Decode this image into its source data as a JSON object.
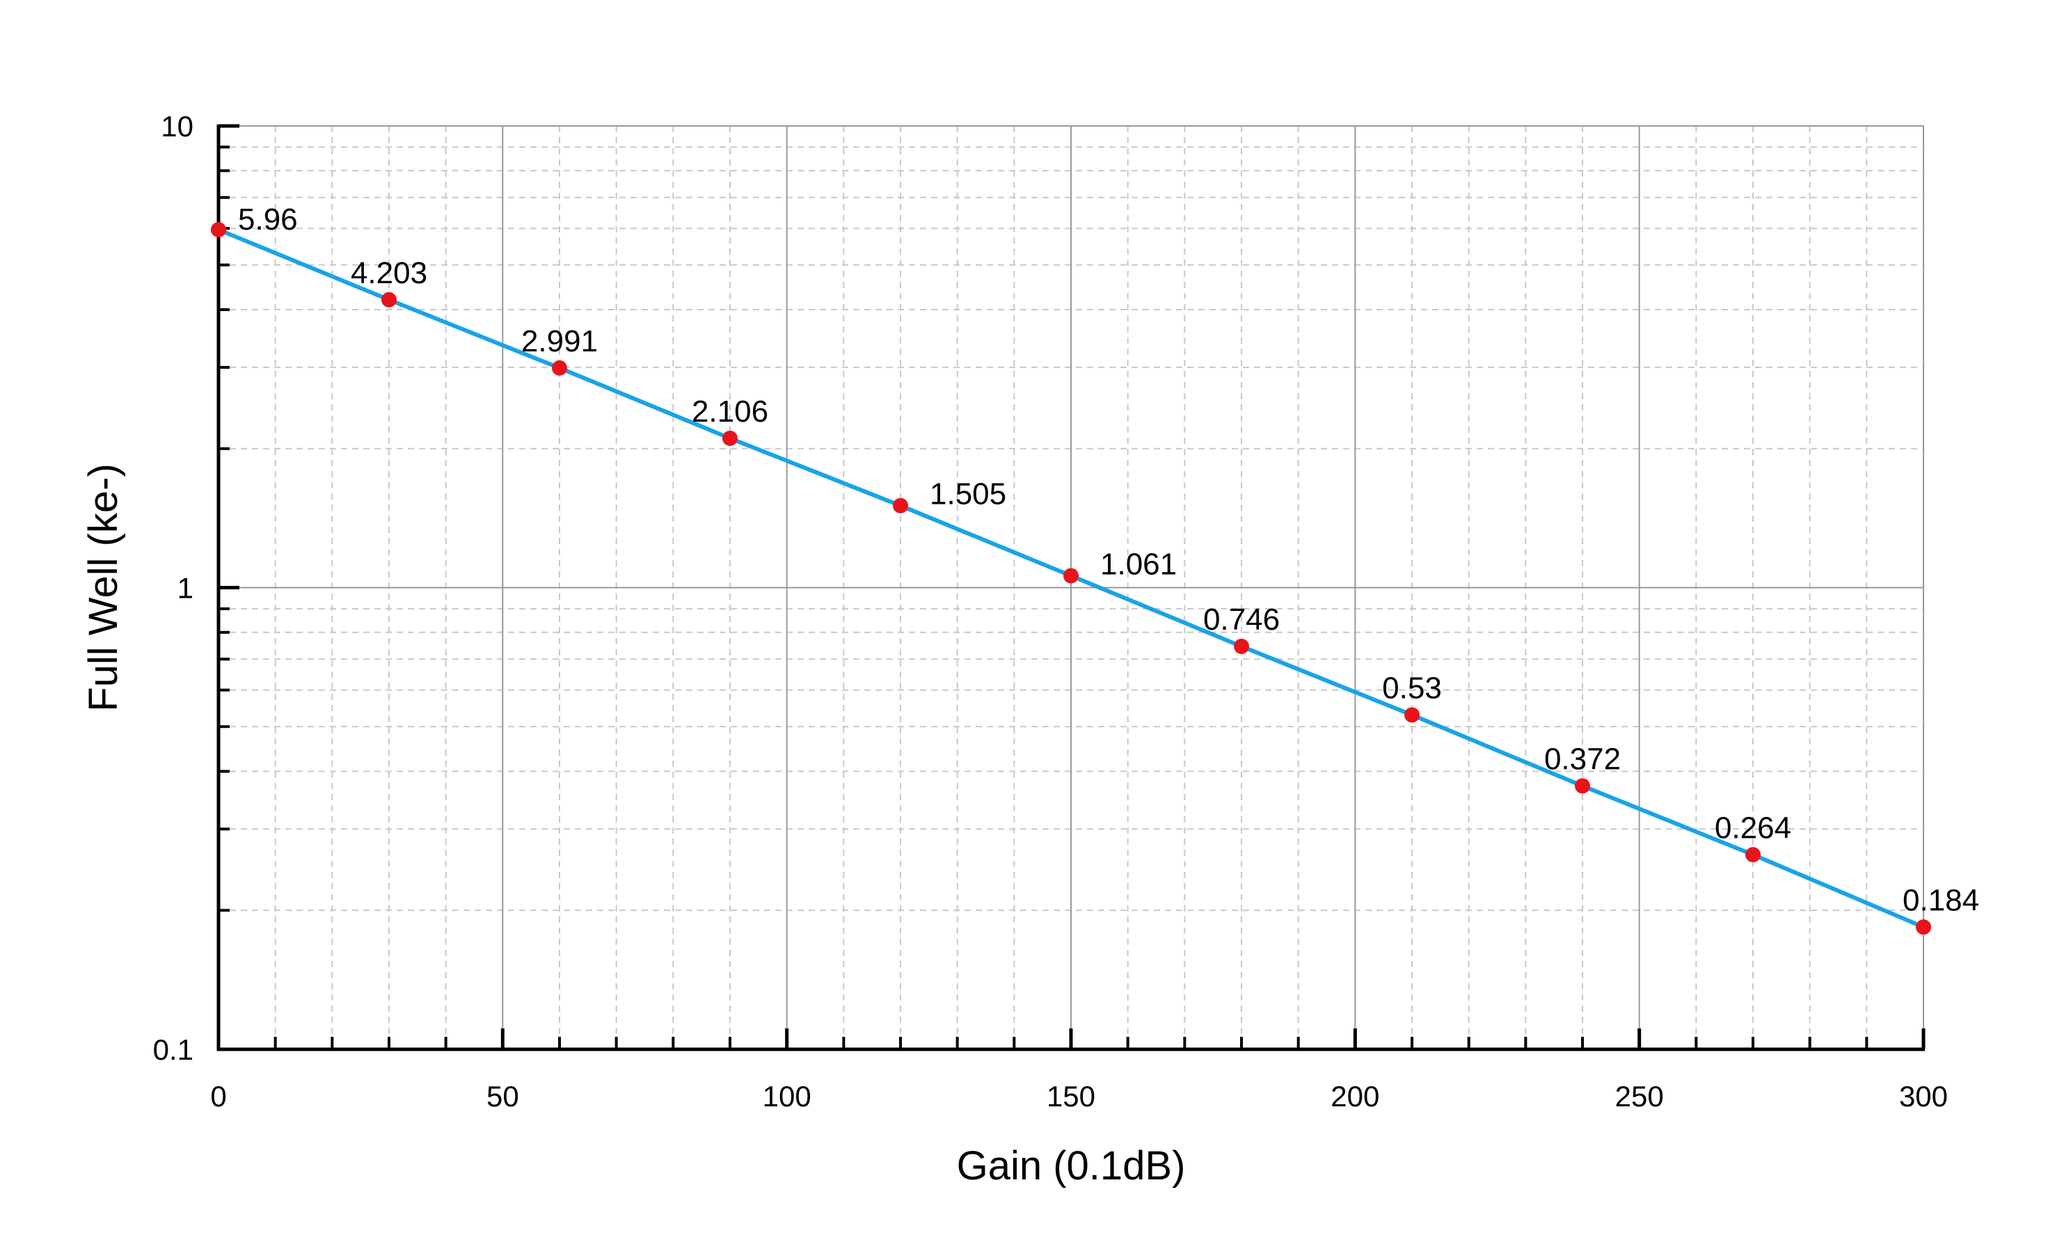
{
  "chart_data": {
    "type": "scatter",
    "title": "",
    "xlabel": "Gain (0.1dB)",
    "ylabel": "Full Well (ke-)",
    "xlim": [
      0,
      300
    ],
    "ylim": [
      0.1,
      10
    ],
    "y_scale": "log",
    "x_ticks": [
      0,
      50,
      100,
      150,
      200,
      250,
      300
    ],
    "x_tick_labels": [
      "0",
      "50",
      "100",
      "150",
      "200",
      "250",
      "300"
    ],
    "y_ticks": [
      0.1,
      1,
      10
    ],
    "y_tick_labels": [
      "0.1",
      "1",
      "10"
    ],
    "grid": true,
    "legend": "none",
    "series": [
      {
        "x": [
          0,
          30,
          60,
          90,
          120,
          150,
          180,
          210,
          240,
          270,
          300
        ],
        "y": [
          5.96,
          4.203,
          2.991,
          2.106,
          1.505,
          1.061,
          0.746,
          0.53,
          0.372,
          0.264,
          0.184
        ],
        "labels": [
          "5.96",
          "4.203",
          "2.991",
          "2.106",
          "1.505",
          "1.061",
          "0.746",
          "0.53",
          "0.372",
          "0.264",
          "0.184"
        ],
        "line_color": "#1aa3e8",
        "marker_color": "#e8141b"
      }
    ]
  }
}
